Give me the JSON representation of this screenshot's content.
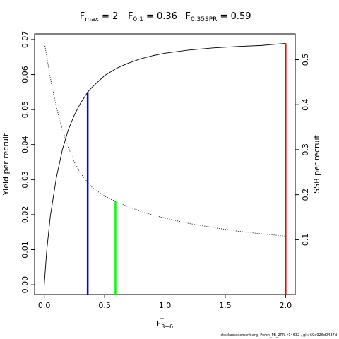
{
  "chart_data": {
    "type": "line",
    "title_parts": [
      {
        "main": "F",
        "sub": "max",
        "rest": " = 2"
      },
      {
        "main": "F",
        "sub": "0.1",
        "rest": " = 0.36"
      },
      {
        "main": "F",
        "sub": "0.35SPR",
        "rest": " = 0.59"
      }
    ],
    "xlabel": {
      "main": "F",
      "sub": "3−6"
    },
    "ylabel_left": "Yield per recruit",
    "ylabel_right": "SSB per recruit",
    "xlim": [
      -0.08,
      2.08
    ],
    "ylim_left": [
      -0.0028,
      0.0716
    ],
    "ylim_right": [
      -0.0218,
      0.5572
    ],
    "x_ticks": [
      0,
      0.5,
      1.0,
      1.5,
      2.0
    ],
    "x_tick_labels": [
      "0.0",
      "0.5",
      "1.0",
      "1.5",
      "2.0"
    ],
    "y_left_ticks": [
      0,
      0.01,
      0.02,
      0.03,
      0.04,
      0.05,
      0.06,
      0.07
    ],
    "y_left_tick_labels": [
      "0.00",
      "0.01",
      "0.02",
      "0.03",
      "0.04",
      "0.05",
      "0.06",
      "0.07"
    ],
    "y_right_ticks": [
      0.1,
      0.2,
      0.3,
      0.4,
      0.5
    ],
    "y_right_tick_labels": [
      "0.1",
      "0.2",
      "0.3",
      "0.4",
      "0.5"
    ],
    "series": [
      {
        "style": "solid",
        "axis": "left",
        "color": "#000000",
        "x": [
          0,
          0.02,
          0.05,
          0.1,
          0.15,
          0.2,
          0.25,
          0.3,
          0.36,
          0.4,
          0.5,
          0.6,
          0.7,
          0.8,
          0.9,
          1.0,
          1.2,
          1.4,
          1.6,
          1.8,
          2.0
        ],
        "y": [
          0,
          0.0095,
          0.0195,
          0.0305,
          0.0385,
          0.0443,
          0.0485,
          0.0518,
          0.055,
          0.0565,
          0.0597,
          0.0618,
          0.0633,
          0.0645,
          0.0654,
          0.0661,
          0.067,
          0.0676,
          0.068,
          0.0683,
          0.0689
        ]
      },
      {
        "style": "dotted",
        "axis": "right",
        "color": "#000000",
        "x": [
          0,
          0.05,
          0.1,
          0.15,
          0.2,
          0.25,
          0.3,
          0.36,
          0.4,
          0.5,
          0.59,
          0.7,
          0.8,
          0.9,
          1.0,
          1.2,
          1.4,
          1.6,
          1.8,
          2.0
        ],
        "y": [
          0.54,
          0.46,
          0.395,
          0.345,
          0.305,
          0.272,
          0.248,
          0.227,
          0.215,
          0.197,
          0.185,
          0.173,
          0.163,
          0.155,
          0.148,
          0.136,
          0.127,
          0.119,
          0.113,
          0.108
        ]
      }
    ],
    "reference_lines": [
      {
        "name": "F0.1",
        "x": 0.36,
        "y_left": 0.055,
        "color": "#0000ff"
      },
      {
        "name": "F0.35SPR",
        "x": 0.59,
        "y_right": 0.185,
        "color": "#00ff00"
      },
      {
        "name": "Fmax",
        "x": 2.0,
        "y_left": 0.0689,
        "color": "#ff0000"
      }
    ],
    "grid": false,
    "legend": "none"
  },
  "footer": "stockassessment.org, Perch_PB_2PR, r14632 , git: 69d926d0437d"
}
